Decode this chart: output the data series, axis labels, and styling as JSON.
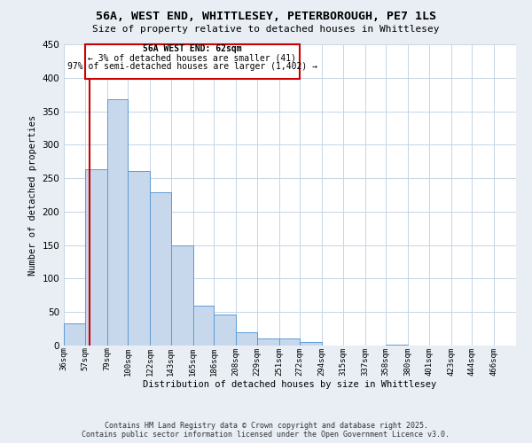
{
  "title1": "56A, WEST END, WHITTLESEY, PETERBOROUGH, PE7 1LS",
  "title2": "Size of property relative to detached houses in Whittlesey",
  "xlabel": "Distribution of detached houses by size in Whittlesey",
  "ylabel": "Number of detached properties",
  "bin_labels": [
    "36sqm",
    "57sqm",
    "79sqm",
    "100sqm",
    "122sqm",
    "143sqm",
    "165sqm",
    "186sqm",
    "208sqm",
    "229sqm",
    "251sqm",
    "272sqm",
    "294sqm",
    "315sqm",
    "337sqm",
    "358sqm",
    "380sqm",
    "401sqm",
    "423sqm",
    "444sqm",
    "466sqm"
  ],
  "bin_values": [
    33,
    263,
    368,
    261,
    229,
    149,
    60,
    46,
    20,
    10,
    10,
    5,
    0,
    0,
    0,
    1,
    0,
    0,
    0,
    0,
    0
  ],
  "bar_color": "#c8d8ec",
  "bar_edge_color": "#5b9bd5",
  "property_label": "56A WEST END: 62sqm",
  "annotation_line1": "← 3% of detached houses are smaller (41)",
  "annotation_line2": "97% of semi-detached houses are larger (1,402) →",
  "vline_color": "#cc0000",
  "annotation_box_color": "#cc0000",
  "ylim": [
    0,
    450
  ],
  "yticks": [
    0,
    50,
    100,
    150,
    200,
    250,
    300,
    350,
    400,
    450
  ],
  "footer1": "Contains HM Land Registry data © Crown copyright and database right 2025.",
  "footer2": "Contains public sector information licensed under the Open Government Licence v3.0.",
  "bg_color": "#e8eef4",
  "plot_bg_color": "#ffffff",
  "grid_color": "#c5d5e5"
}
